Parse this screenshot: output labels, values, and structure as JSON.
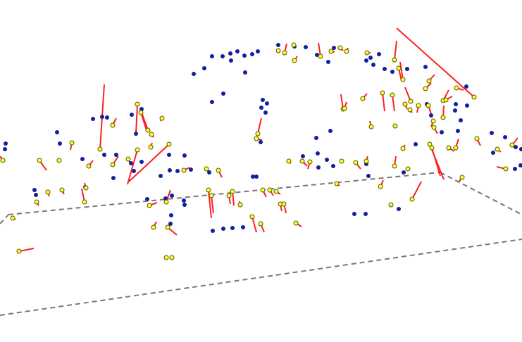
{
  "chart_data": {
    "type": "scatter",
    "legend": "none",
    "grid": false,
    "colors": {
      "tracked_point": "#1020a0",
      "matched_point": "#ffff33",
      "matched_point_outline": "#555500",
      "motion_line": "#ff2020",
      "ground_plane": "#777777"
    }
  }
}
